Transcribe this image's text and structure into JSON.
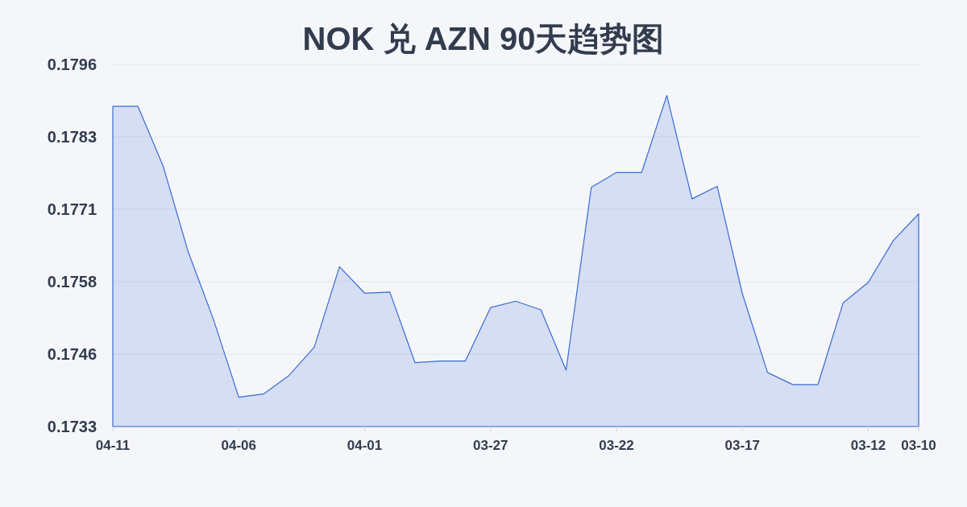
{
  "chart_data": {
    "type": "area",
    "title": "NOK 兑 AZN 90天趋势图",
    "categories": [
      "04-11",
      null,
      null,
      null,
      null,
      "04-06",
      null,
      null,
      null,
      null,
      "04-01",
      null,
      null,
      null,
      null,
      "03-27",
      null,
      null,
      null,
      null,
      "03-22",
      null,
      null,
      null,
      null,
      "03-17",
      null,
      null,
      null,
      null,
      "03-12",
      null,
      "03-10"
    ],
    "values": [
      0.17887,
      0.17887,
      0.17783,
      0.17633,
      0.17516,
      0.17381,
      0.17387,
      0.17419,
      0.17468,
      0.17608,
      0.17562,
      0.17564,
      0.17441,
      0.17444,
      0.17444,
      0.17537,
      0.17548,
      0.17533,
      0.17428,
      0.17746,
      0.17772,
      0.17772,
      0.17906,
      0.17726,
      0.17748,
      0.17561,
      0.17424,
      0.17403,
      0.17403,
      0.17545,
      0.17581,
      0.17654,
      0.177
    ],
    "color": "#3a6bd4",
    "ylim": [
      0.1733,
      0.1796
    ],
    "yticks": [
      0.1733,
      {
        "value": 0.17456,
        "label": "0.1746"
      },
      {
        "value": 0.17582,
        "label": "0.1758"
      },
      {
        "value": 0.17708,
        "label": "0.1771"
      },
      {
        "value": 0.17834,
        "label": "0.1783"
      },
      0.1796
    ],
    "grid": "y"
  }
}
